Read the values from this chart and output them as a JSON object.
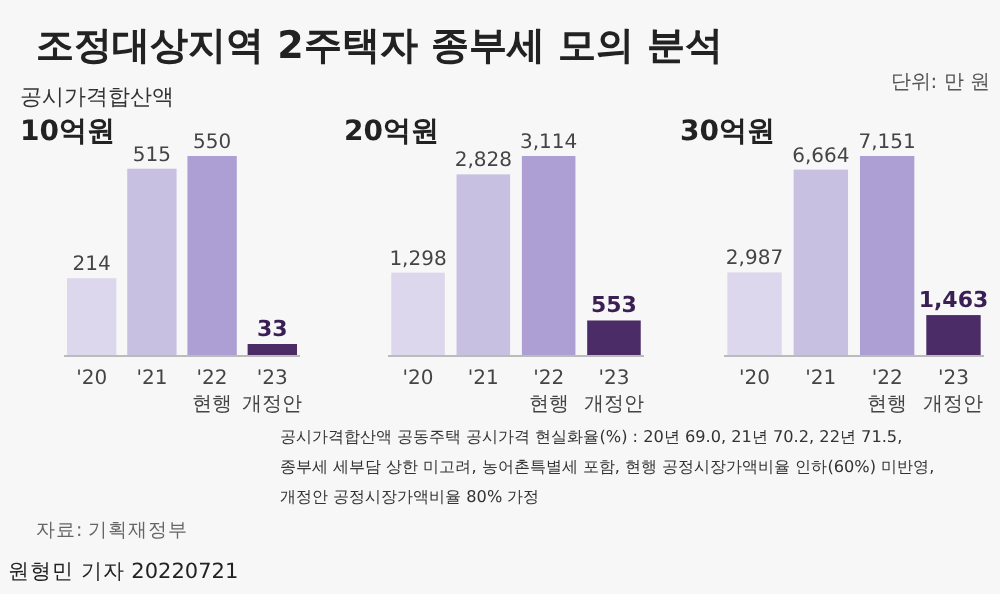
{
  "chart_data": [
    {
      "type": "bar",
      "subtitle": "공시가격합산액",
      "title": "10억원",
      "categories": [
        "'20",
        "'21",
        "'22\n현행",
        "'23\n개정안"
      ],
      "values": [
        214,
        515,
        550,
        33
      ],
      "value_labels": [
        "214",
        "515",
        "550",
        "33"
      ],
      "colors": [
        "#dcd7ec",
        "#c8c0e0",
        "#ad9fd3",
        "#4b2c66"
      ]
    },
    {
      "type": "bar",
      "title": "20억원",
      "categories": [
        "'20",
        "'21",
        "'22\n현행",
        "'23\n개정안"
      ],
      "values": [
        1298,
        2828,
        3114,
        553
      ],
      "value_labels": [
        "1,298",
        "2,828",
        "3,114",
        "553"
      ],
      "colors": [
        "#dcd7ec",
        "#c8c0e0",
        "#ad9fd3",
        "#4b2c66"
      ]
    },
    {
      "type": "bar",
      "title": "30억원",
      "categories": [
        "'20",
        "'21",
        "'22\n현행",
        "'23\n개정안"
      ],
      "values": [
        2987,
        6664,
        7151,
        1463
      ],
      "value_labels": [
        "2,987",
        "6,664",
        "7,151",
        "1,463"
      ],
      "colors": [
        "#dcd7ec",
        "#c8c0e0",
        "#ad9fd3",
        "#4b2c66"
      ]
    },
    {
      "type": "other",
      "title": "조정대상지역 2주택자 종부세 모의 분석",
      "annotations": [
        "단위: 만 원",
        "공시가격합산액 공동주택 공시가격 현실화율(%) : 20년 69.0, 21년 70.2, 22년 71.5,",
        "종부세 세부담 상한 미고려, 농어촌특별세 포함, 현행 공정시장가액비율 인하(60%) 미반영,",
        "개정안 공정시장가액비율 80% 가정",
        "자료: 기획재정부",
        "원형민 기자 20220721"
      ]
    }
  ]
}
